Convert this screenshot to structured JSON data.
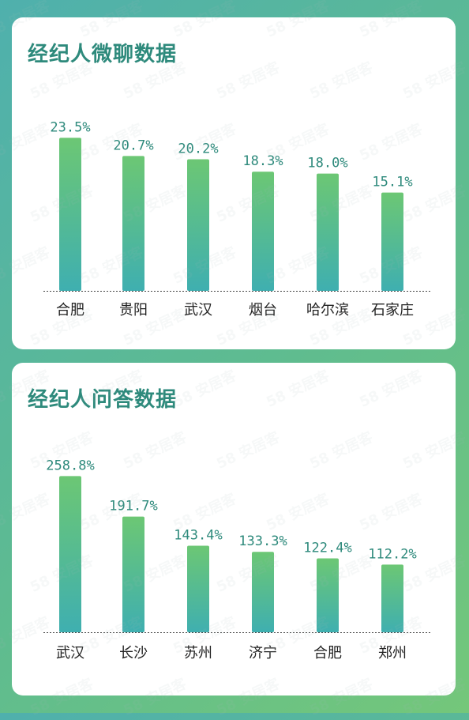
{
  "chart_data": [
    {
      "type": "bar",
      "title": "经纪人微聊数据",
      "categories": [
        "合肥",
        "贵阳",
        "武汉",
        "烟台",
        "哈尔滨",
        "石家庄"
      ],
      "values": [
        23.5,
        20.7,
        20.2,
        18.3,
        18.0,
        15.1
      ],
      "value_labels": [
        "23.5%",
        "20.7%",
        "20.2%",
        "18.3%",
        "18.0%",
        "15.1%"
      ],
      "ylim": [
        0,
        25
      ],
      "grid": false,
      "colors": {
        "bar_top": "#6cc774",
        "bar_bottom": "#3fafb0",
        "label": "#2e8a7c"
      }
    },
    {
      "type": "bar",
      "title": "经纪人问答数据",
      "categories": [
        "武汉",
        "长沙",
        "苏州",
        "济宁",
        "合肥",
        "郑州"
      ],
      "values": [
        258.8,
        191.7,
        143.4,
        133.3,
        122.4,
        112.2
      ],
      "value_labels": [
        "258.8%",
        "191.7%",
        "143.4%",
        "133.3%",
        "122.4%",
        "112.2%"
      ],
      "ylim": [
        0,
        275
      ],
      "grid": false,
      "colors": {
        "bar_top": "#6cc774",
        "bar_bottom": "#3fafb0",
        "label": "#2e8a7c"
      }
    }
  ],
  "watermark": "58 安居客"
}
